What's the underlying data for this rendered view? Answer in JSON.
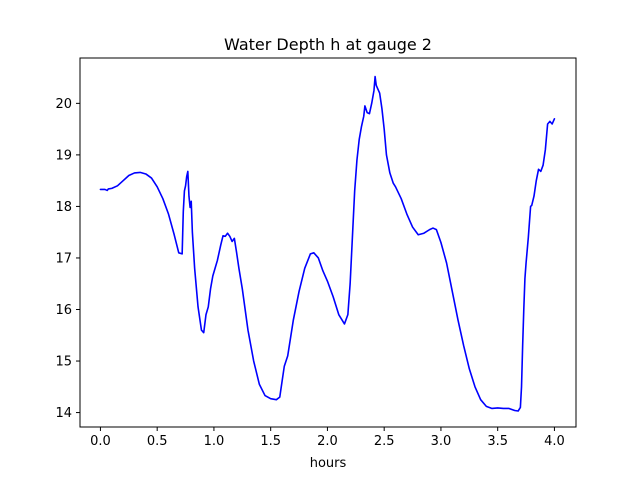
{
  "chart_data": {
    "type": "line",
    "title": "Water Depth h at gauge 2",
    "xlabel": "hours",
    "ylabel": "",
    "xlim": [
      -0.18,
      4.19
    ],
    "ylim": [
      13.72,
      20.88
    ],
    "xticks": [
      0.0,
      0.5,
      1.0,
      1.5,
      2.0,
      2.5,
      3.0,
      3.5,
      4.0
    ],
    "xtick_labels": [
      "0.0",
      "0.5",
      "1.0",
      "1.5",
      "2.0",
      "2.5",
      "3.0",
      "3.5",
      "4.0"
    ],
    "yticks": [
      14,
      15,
      16,
      17,
      18,
      19,
      20
    ],
    "ytick_labels": [
      "14",
      "15",
      "16",
      "17",
      "18",
      "19",
      "20"
    ],
    "grid": false,
    "series": [
      {
        "color": "#0000ff",
        "x": [
          0.0,
          0.04,
          0.06,
          0.07,
          0.1,
          0.15,
          0.2,
          0.25,
          0.3,
          0.35,
          0.4,
          0.45,
          0.5,
          0.55,
          0.6,
          0.65,
          0.69,
          0.72,
          0.73,
          0.74,
          0.75,
          0.76,
          0.77,
          0.78,
          0.79,
          0.8,
          0.81,
          0.83,
          0.86,
          0.89,
          0.91,
          0.93,
          0.95,
          0.97,
          0.99,
          1.01,
          1.03,
          1.06,
          1.08,
          1.1,
          1.12,
          1.14,
          1.16,
          1.18,
          1.2,
          1.22,
          1.25,
          1.3,
          1.35,
          1.4,
          1.45,
          1.5,
          1.55,
          1.58,
          1.6,
          1.62,
          1.65,
          1.7,
          1.75,
          1.8,
          1.85,
          1.88,
          1.92,
          1.96,
          2.0,
          2.05,
          2.1,
          2.15,
          2.18,
          2.2,
          2.22,
          2.24,
          2.26,
          2.28,
          2.3,
          2.32,
          2.33,
          2.35,
          2.37,
          2.39,
          2.41,
          2.42,
          2.43,
          2.44,
          2.46,
          2.48,
          2.5,
          2.52,
          2.55,
          2.58,
          2.6,
          2.65,
          2.7,
          2.75,
          2.8,
          2.85,
          2.9,
          2.93,
          2.96,
          3.0,
          3.05,
          3.1,
          3.15,
          3.2,
          3.25,
          3.3,
          3.35,
          3.4,
          3.45,
          3.5,
          3.55,
          3.6,
          3.65,
          3.68,
          3.7,
          3.71,
          3.72,
          3.73,
          3.74,
          3.75,
          3.77,
          3.79,
          3.8,
          3.82,
          3.84,
          3.86,
          3.88,
          3.9,
          3.92,
          3.94,
          3.96,
          3.98,
          4.0
        ],
        "y": [
          18.33,
          18.33,
          18.31,
          18.34,
          18.35,
          18.4,
          18.5,
          18.6,
          18.65,
          18.66,
          18.63,
          18.55,
          18.38,
          18.15,
          17.85,
          17.45,
          17.1,
          17.08,
          17.9,
          18.3,
          18.4,
          18.58,
          18.68,
          18.2,
          17.98,
          18.1,
          17.5,
          16.8,
          16.05,
          15.6,
          15.55,
          15.9,
          16.05,
          16.4,
          16.65,
          16.8,
          16.95,
          17.25,
          17.43,
          17.42,
          17.48,
          17.42,
          17.32,
          17.38,
          17.1,
          16.8,
          16.4,
          15.6,
          15.0,
          14.55,
          14.33,
          14.27,
          14.25,
          14.3,
          14.6,
          14.9,
          15.1,
          15.8,
          16.35,
          16.8,
          17.08,
          17.1,
          17.0,
          16.75,
          16.55,
          16.25,
          15.9,
          15.72,
          15.9,
          16.5,
          17.4,
          18.3,
          18.9,
          19.3,
          19.55,
          19.75,
          19.95,
          19.82,
          19.8,
          20.0,
          20.25,
          20.52,
          20.35,
          20.3,
          20.2,
          19.9,
          19.5,
          19.0,
          18.65,
          18.45,
          18.38,
          18.15,
          17.85,
          17.6,
          17.45,
          17.48,
          17.55,
          17.58,
          17.55,
          17.3,
          16.9,
          16.35,
          15.8,
          15.3,
          14.85,
          14.5,
          14.25,
          14.12,
          14.08,
          14.09,
          14.08,
          14.08,
          14.04,
          14.03,
          14.1,
          14.5,
          15.3,
          16.0,
          16.6,
          16.9,
          17.4,
          18.0,
          18.02,
          18.2,
          18.5,
          18.72,
          18.68,
          18.8,
          19.1,
          19.6,
          19.65,
          19.6,
          19.7
        ]
      }
    ]
  }
}
